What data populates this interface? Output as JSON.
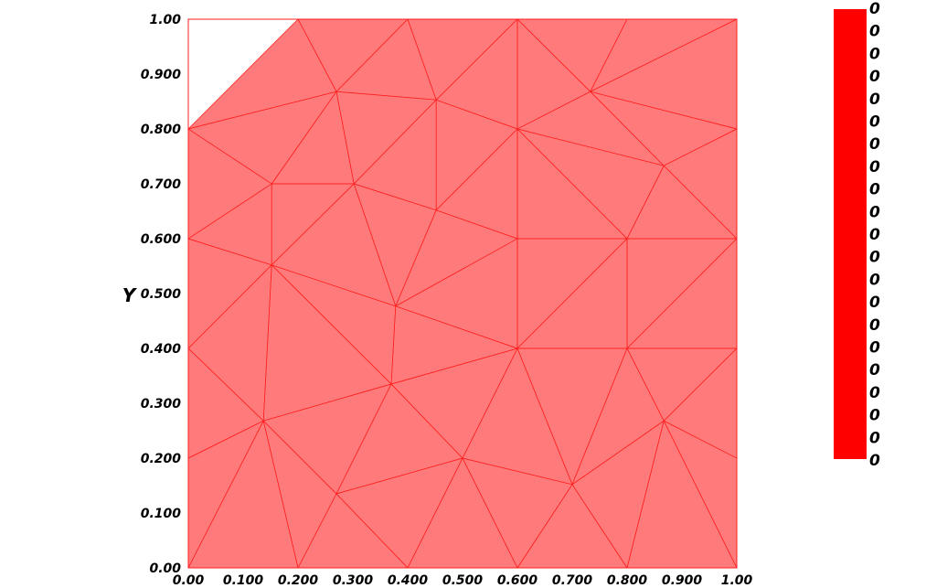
{
  "chart_data": {
    "type": "mesh",
    "ylabel": "Y",
    "xlim": [
      0,
      1
    ],
    "ylim": [
      0,
      1
    ],
    "x_ticks": [
      "0.00",
      "0.100",
      "0.200",
      "0.300",
      "0.400",
      "0.500",
      "0.600",
      "0.700",
      "0.800",
      "0.900",
      "1.00"
    ],
    "y_ticks": [
      "0.00",
      "0.100",
      "0.200",
      "0.300",
      "0.400",
      "0.500",
      "0.600",
      "0.700",
      "0.800",
      "0.900",
      "1.00"
    ],
    "mesh_fill_color": "#ff7b7b",
    "mesh_edge_color": "#ff1e1e",
    "colorbar_color": "#ff0000",
    "colorbar_labels": [
      "0",
      "0",
      "0",
      "0",
      "0",
      "0",
      "0",
      "0",
      "0",
      "0",
      "0",
      "0",
      "0",
      "0",
      "0",
      "0",
      "0",
      "0",
      "0",
      "0",
      "0"
    ],
    "nodes": [
      [
        0,
        0
      ],
      [
        0.2,
        0
      ],
      [
        0.4,
        0
      ],
      [
        0.6,
        0
      ],
      [
        0.8,
        0
      ],
      [
        1,
        0
      ],
      [
        0,
        1
      ],
      [
        0.2,
        1
      ],
      [
        0.4,
        1
      ],
      [
        0.6,
        1
      ],
      [
        0.8,
        1
      ],
      [
        1,
        1
      ],
      [
        0,
        0.2
      ],
      [
        0,
        0.4
      ],
      [
        0,
        0.6
      ],
      [
        0,
        0.8
      ],
      [
        1,
        0.2
      ],
      [
        1,
        0.4
      ],
      [
        1,
        0.6
      ],
      [
        1,
        0.8
      ],
      [
        0.27,
        0.868
      ],
      [
        0.452,
        0.853
      ],
      [
        0.6,
        0.8
      ],
      [
        0.733,
        0.868
      ],
      [
        0.867,
        0.733
      ],
      [
        0.152,
        0.7
      ],
      [
        0.302,
        0.7
      ],
      [
        0.452,
        0.652
      ],
      [
        0.6,
        0.6
      ],
      [
        0.8,
        0.6
      ],
      [
        0.152,
        0.552
      ],
      [
        0.378,
        0.477
      ],
      [
        0.6,
        0.4
      ],
      [
        0.8,
        0.4
      ],
      [
        0.137,
        0.268
      ],
      [
        0.37,
        0.335
      ],
      [
        0.867,
        0.268
      ],
      [
        0.27,
        0.135
      ],
      [
        0.5,
        0.2
      ],
      [
        0.7,
        0.152
      ]
    ],
    "triangles": [
      [
        15,
        7,
        20
      ],
      [
        15,
        20,
        25
      ],
      [
        15,
        25,
        14
      ],
      [
        25,
        20,
        26
      ],
      [
        7,
        8,
        20
      ],
      [
        8,
        21,
        20
      ],
      [
        20,
        21,
        26
      ],
      [
        8,
        9,
        21
      ],
      [
        21,
        9,
        22
      ],
      [
        21,
        22,
        27
      ],
      [
        26,
        21,
        27
      ],
      [
        9,
        23,
        22
      ],
      [
        9,
        10,
        23
      ],
      [
        10,
        11,
        23
      ],
      [
        11,
        19,
        23
      ],
      [
        23,
        19,
        24
      ],
      [
        22,
        23,
        24
      ],
      [
        22,
        24,
        29
      ],
      [
        22,
        29,
        28
      ],
      [
        22,
        28,
        27
      ],
      [
        24,
        19,
        18
      ],
      [
        24,
        18,
        29
      ],
      [
        14,
        25,
        30
      ],
      [
        25,
        26,
        30
      ],
      [
        30,
        26,
        31
      ],
      [
        26,
        27,
        31
      ],
      [
        27,
        28,
        31
      ],
      [
        28,
        32,
        31
      ],
      [
        28,
        29,
        32
      ],
      [
        29,
        33,
        32
      ],
      [
        29,
        18,
        33
      ],
      [
        18,
        17,
        33
      ],
      [
        14,
        30,
        13
      ],
      [
        13,
        30,
        34
      ],
      [
        30,
        31,
        35
      ],
      [
        30,
        35,
        34
      ],
      [
        31,
        32,
        35
      ],
      [
        13,
        34,
        12
      ],
      [
        12,
        34,
        0
      ],
      [
        0,
        34,
        1
      ],
      [
        34,
        37,
        1
      ],
      [
        34,
        35,
        37
      ],
      [
        35,
        38,
        37
      ],
      [
        35,
        32,
        38
      ],
      [
        32,
        39,
        38
      ],
      [
        32,
        33,
        39
      ],
      [
        33,
        36,
        39
      ],
      [
        33,
        17,
        36
      ],
      [
        17,
        16,
        36
      ],
      [
        16,
        5,
        36
      ],
      [
        36,
        5,
        4
      ],
      [
        36,
        4,
        39
      ],
      [
        39,
        4,
        3
      ],
      [
        39,
        3,
        38
      ],
      [
        38,
        3,
        2
      ],
      [
        38,
        2,
        37
      ],
      [
        37,
        2,
        1
      ]
    ]
  }
}
